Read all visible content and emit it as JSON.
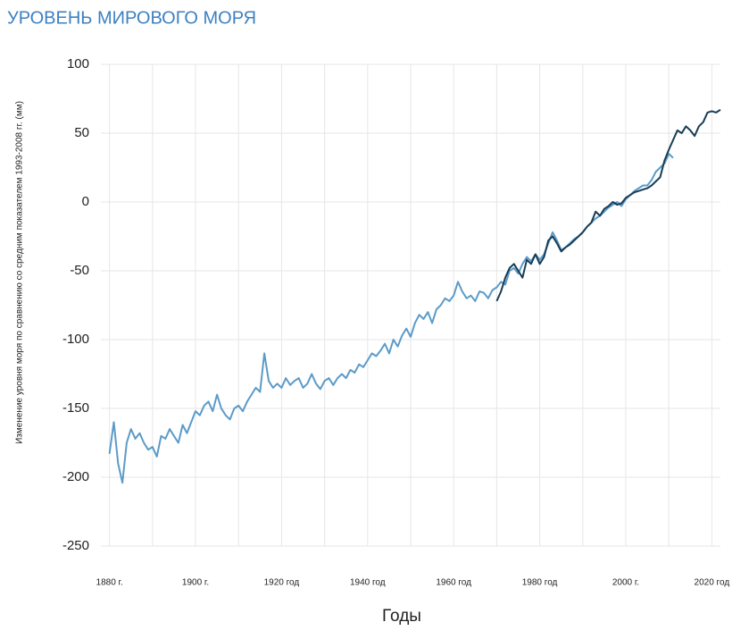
{
  "chart_data": {
    "type": "line",
    "title": "УРОВЕНЬ МИРОВОГО МОРЯ",
    "ylabel": "Изменение уровня моря по сравнению со средним показателем 1993-2008 гг. (мм)",
    "xlabel": "Годы",
    "xlim": [
      1878,
      2022
    ],
    "ylim": [
      -250,
      100
    ],
    "yticks": [
      -250,
      -200,
      -150,
      -100,
      -50,
      0,
      50,
      100
    ],
    "xticks": [
      {
        "value": 1880,
        "label": "1880 г."
      },
      {
        "value": 1900,
        "label": "1900 г."
      },
      {
        "value": 1920,
        "label": "1920 год"
      },
      {
        "value": 1940,
        "label": "1940 год"
      },
      {
        "value": 1960,
        "label": "1960 год"
      },
      {
        "value": 1980,
        "label": "1980 год"
      },
      {
        "value": 2000,
        "label": "2000 г."
      },
      {
        "value": 2020,
        "label": "2020 год"
      }
    ],
    "xminor_ticks": [
      1890,
      1910,
      1930,
      1950,
      1970,
      1990,
      2010
    ],
    "grid": true,
    "series": [
      {
        "color": "#5b9bc9",
        "x": [
          1880,
          1881,
          1882,
          1883,
          1884,
          1885,
          1886,
          1887,
          1888,
          1889,
          1890,
          1891,
          1892,
          1893,
          1894,
          1895,
          1896,
          1897,
          1898,
          1899,
          1900,
          1901,
          1902,
          1903,
          1904,
          1905,
          1906,
          1907,
          1908,
          1909,
          1910,
          1911,
          1912,
          1913,
          1914,
          1915,
          1916,
          1917,
          1918,
          1919,
          1920,
          1921,
          1922,
          1923,
          1924,
          1925,
          1926,
          1927,
          1928,
          1929,
          1930,
          1931,
          1932,
          1933,
          1934,
          1935,
          1936,
          1937,
          1938,
          1939,
          1940,
          1941,
          1942,
          1943,
          1944,
          1945,
          1946,
          1947,
          1948,
          1949,
          1950,
          1951,
          1952,
          1953,
          1954,
          1955,
          1956,
          1957,
          1958,
          1959,
          1960,
          1961,
          1962,
          1963,
          1964,
          1965,
          1966,
          1967,
          1968,
          1969,
          1970,
          1971,
          1972,
          1973,
          1974,
          1975,
          1976,
          1977,
          1978,
          1979,
          1980,
          1981,
          1982,
          1983,
          1984,
          1985,
          1986,
          1987,
          1988,
          1989,
          1990,
          1991,
          1992,
          1993,
          1994,
          1995,
          1996,
          1997,
          1998,
          1999,
          2000,
          2001,
          2002,
          2003,
          2004,
          2005,
          2006,
          2007,
          2008,
          2009,
          2010,
          2011
        ],
        "values": [
          -183,
          -160,
          -190,
          -204,
          -175,
          -165,
          -172,
          -168,
          -175,
          -180,
          -178,
          -185,
          -170,
          -172,
          -165,
          -170,
          -175,
          -162,
          -168,
          -160,
          -152,
          -155,
          -148,
          -145,
          -152,
          -140,
          -150,
          -155,
          -158,
          -150,
          -148,
          -152,
          -145,
          -140,
          -135,
          -138,
          -110,
          -130,
          -135,
          -132,
          -135,
          -128,
          -133,
          -130,
          -128,
          -135,
          -132,
          -125,
          -132,
          -136,
          -130,
          -128,
          -133,
          -128,
          -125,
          -128,
          -122,
          -124,
          -118,
          -120,
          -115,
          -110,
          -112,
          -108,
          -103,
          -110,
          -100,
          -105,
          -97,
          -92,
          -98,
          -88,
          -82,
          -85,
          -80,
          -88,
          -78,
          -75,
          -70,
          -72,
          -68,
          -58,
          -65,
          -70,
          -68,
          -72,
          -65,
          -66,
          -70,
          -64,
          -62,
          -58,
          -60,
          -50,
          -48,
          -52,
          -45,
          -40,
          -43,
          -38,
          -42,
          -38,
          -30,
          -22,
          -28,
          -35,
          -33,
          -30,
          -27,
          -25,
          -22,
          -18,
          -15,
          -12,
          -10,
          -7,
          -4,
          -2,
          0,
          -3,
          2,
          5,
          8,
          10,
          12,
          12,
          16,
          22,
          25,
          28,
          35,
          32
        ]
      },
      {
        "color": "#173d55",
        "x": [
          1970,
          1971,
          1972,
          1973,
          1974,
          1975,
          1976,
          1977,
          1978,
          1979,
          1980,
          1981,
          1982,
          1983,
          1984,
          1985,
          1986,
          1987,
          1988,
          1989,
          1990,
          1991,
          1992,
          1993,
          1994,
          1995,
          1996,
          1997,
          1998,
          1999,
          2000,
          2001,
          2002,
          2003,
          2004,
          2005,
          2006,
          2007,
          2008,
          2009,
          2010,
          2011,
          2012,
          2013,
          2014,
          2015,
          2016,
          2017,
          2018,
          2019,
          2020,
          2021,
          2022
        ],
        "values": [
          -72,
          -65,
          -55,
          -48,
          -45,
          -50,
          -55,
          -42,
          -45,
          -38,
          -45,
          -40,
          -28,
          -25,
          -30,
          -36,
          -33,
          -31,
          -28,
          -25,
          -22,
          -18,
          -15,
          -7,
          -10,
          -5,
          -3,
          0,
          -2,
          -1,
          3,
          5,
          7,
          8,
          9,
          10,
          12,
          15,
          18,
          30,
          38,
          45,
          52,
          50,
          55,
          52,
          48,
          55,
          58,
          65,
          66,
          65,
          67
        ]
      }
    ]
  }
}
